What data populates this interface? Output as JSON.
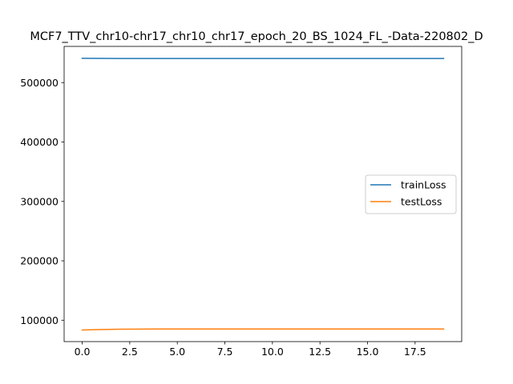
{
  "chart_data": {
    "type": "line",
    "title": "MCF7_TTV_chr10-chr17_chr10_chr17_epoch_20_BS_1024_FL_-Data-220802_D",
    "xlabel": "",
    "ylabel": "",
    "xlim": [
      -0.95,
      19.95
    ],
    "ylim": [
      64000,
      561000
    ],
    "xticks": [
      0.0,
      2.5,
      5.0,
      7.5,
      10.0,
      12.5,
      15.0,
      17.5
    ],
    "xtick_labels": [
      "0.0",
      "2.5",
      "5.0",
      "7.5",
      "10.0",
      "12.5",
      "15.0",
      "17.5"
    ],
    "yticks": [
      100000,
      200000,
      300000,
      400000,
      500000
    ],
    "ytick_labels": [
      "100000",
      "200000",
      "300000",
      "400000",
      "500000"
    ],
    "grid": false,
    "legend_position": "center-right",
    "x": [
      0,
      1,
      2,
      3,
      4,
      5,
      6,
      7,
      8,
      9,
      10,
      11,
      12,
      13,
      14,
      15,
      16,
      17,
      18,
      19
    ],
    "series": [
      {
        "name": "trainLoss",
        "color": "#1f77b4",
        "values": [
          541000,
          540800,
          540700,
          540700,
          540700,
          540700,
          540700,
          540700,
          540700,
          540700,
          540700,
          540700,
          540700,
          540700,
          540700,
          540700,
          540700,
          540700,
          540700,
          540700
        ]
      },
      {
        "name": "testLoss",
        "color": "#ff7f0e",
        "values": [
          83500,
          84400,
          84900,
          85100,
          85200,
          85250,
          85250,
          85300,
          85300,
          85250,
          85300,
          85300,
          85250,
          85250,
          85300,
          85300,
          85300,
          85300,
          85300,
          85300
        ]
      }
    ]
  }
}
